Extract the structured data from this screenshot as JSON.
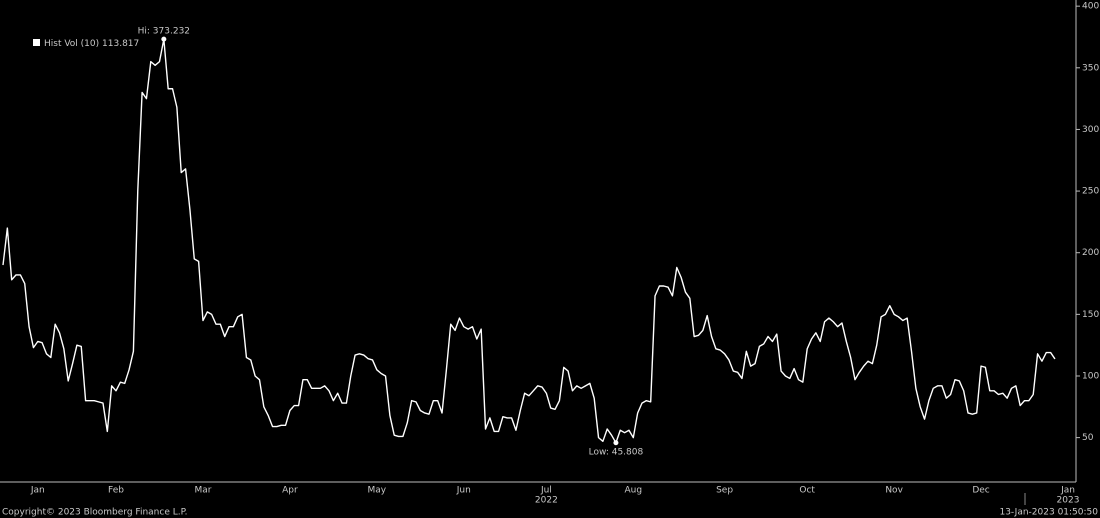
{
  "chart_data": {
    "type": "line",
    "legend_value_index": 242,
    "annotations": [
      "Hi: 373.232",
      "Low: 45.808"
    ],
    "footer_left": "Copyright© 2023 Bloomberg Finance L.P.",
    "footer_right": "13-Jan-2023 01:50:50",
    "categories": [
      null,
      null,
      null,
      null,
      null,
      null,
      null,
      null,
      "Jan",
      null,
      null,
      null,
      null,
      null,
      null,
      null,
      null,
      null,
      null,
      null,
      null,
      null,
      null,
      null,
      null,
      null,
      "Feb",
      null,
      null,
      null,
      null,
      null,
      null,
      null,
      null,
      null,
      null,
      null,
      null,
      null,
      null,
      null,
      null,
      null,
      null,
      null,
      "Mar",
      null,
      null,
      null,
      null,
      null,
      null,
      null,
      null,
      null,
      null,
      null,
      null,
      null,
      null,
      null,
      null,
      null,
      null,
      null,
      "Apr",
      null,
      null,
      null,
      null,
      null,
      null,
      null,
      null,
      null,
      null,
      null,
      null,
      null,
      null,
      null,
      null,
      null,
      null,
      null,
      "May",
      null,
      null,
      null,
      null,
      null,
      null,
      null,
      null,
      null,
      null,
      null,
      null,
      null,
      null,
      null,
      null,
      null,
      null,
      null,
      "Jun",
      null,
      null,
      null,
      null,
      null,
      null,
      null,
      null,
      null,
      null,
      null,
      null,
      null,
      null,
      null,
      null,
      null,
      null,
      "Jul",
      null,
      null,
      null,
      null,
      null,
      null,
      null,
      null,
      null,
      null,
      null,
      null,
      null,
      null,
      null,
      null,
      null,
      null,
      null,
      "Aug",
      null,
      null,
      null,
      null,
      null,
      null,
      null,
      null,
      null,
      null,
      null,
      null,
      null,
      null,
      null,
      null,
      null,
      null,
      null,
      null,
      "Sep",
      null,
      null,
      null,
      null,
      null,
      null,
      null,
      null,
      null,
      null,
      null,
      null,
      null,
      null,
      null,
      null,
      null,
      null,
      "Oct",
      null,
      null,
      null,
      null,
      null,
      null,
      null,
      null,
      null,
      null,
      null,
      null,
      null,
      null,
      null,
      null,
      null,
      null,
      null,
      "Nov",
      null,
      null,
      null,
      null,
      null,
      null,
      null,
      null,
      null,
      null,
      null,
      null,
      null,
      null,
      null,
      null,
      null,
      null,
      null,
      "Dec",
      null,
      null,
      null,
      null,
      null,
      null,
      null,
      null,
      null,
      null,
      null,
      null,
      null,
      null,
      null,
      null,
      null,
      null,
      null,
      "Jan"
    ],
    "year_categories": [
      null,
      null,
      null,
      null,
      null,
      null,
      null,
      null,
      null,
      null,
      null,
      null,
      null,
      null,
      null,
      null,
      null,
      null,
      null,
      null,
      null,
      null,
      null,
      null,
      null,
      null,
      null,
      null,
      null,
      null,
      null,
      null,
      null,
      null,
      null,
      null,
      null,
      null,
      null,
      null,
      null,
      null,
      null,
      null,
      null,
      null,
      null,
      null,
      null,
      null,
      null,
      null,
      null,
      null,
      null,
      null,
      null,
      null,
      null,
      null,
      null,
      null,
      null,
      null,
      null,
      null,
      null,
      null,
      null,
      null,
      null,
      null,
      null,
      null,
      null,
      null,
      null,
      null,
      null,
      null,
      null,
      null,
      null,
      null,
      null,
      null,
      null,
      null,
      null,
      null,
      null,
      null,
      null,
      null,
      null,
      null,
      null,
      null,
      null,
      null,
      null,
      null,
      null,
      null,
      null,
      null,
      null,
      null,
      null,
      null,
      null,
      null,
      null,
      null,
      null,
      null,
      null,
      null,
      null,
      null,
      null,
      null,
      null,
      null,
      null,
      "2022",
      null,
      null,
      null,
      null,
      null,
      null,
      null,
      null,
      null,
      null,
      null,
      null,
      null,
      null,
      null,
      null,
      null,
      null,
      null,
      null,
      null,
      null,
      null,
      null,
      null,
      null,
      null,
      null,
      null,
      null,
      null,
      null,
      null,
      null,
      null,
      null,
      null,
      null,
      null,
      null,
      null,
      null,
      null,
      null,
      null,
      null,
      null,
      null,
      null,
      null,
      null,
      null,
      null,
      null,
      null,
      null,
      null,
      null,
      null,
      null,
      null,
      null,
      null,
      null,
      null,
      null,
      null,
      null,
      null,
      null,
      null,
      null,
      null,
      null,
      null,
      null,
      null,
      null,
      null,
      null,
      null,
      null,
      null,
      null,
      null,
      null,
      null,
      null,
      null,
      null,
      null,
      null,
      null,
      null,
      null,
      null,
      null,
      null,
      null,
      null,
      null,
      null,
      null,
      null,
      null,
      null,
      null,
      null,
      null,
      null,
      null,
      null,
      null,
      null,
      null,
      null,
      null,
      null,
      null,
      "2023"
    ],
    "series": [
      {
        "name": "Hist Vol (10)",
        "color": "#ffffff",
        "values": [
          190,
          220,
          178,
          182,
          182,
          175,
          140,
          123,
          128,
          127,
          118,
          115,
          142,
          135,
          122,
          96,
          110,
          125,
          124,
          80,
          80,
          80,
          79,
          78,
          55,
          92,
          88,
          95,
          94,
          105,
          120,
          250,
          330,
          325,
          355,
          352,
          355,
          373.232,
          333,
          333,
          318,
          265,
          268,
          235,
          195,
          193,
          145,
          152,
          150,
          142,
          142,
          132,
          140,
          140,
          148,
          150,
          115,
          113,
          100,
          97,
          75,
          68,
          59,
          59,
          60,
          60,
          72,
          76,
          76,
          97,
          97,
          90,
          90,
          90,
          92,
          88,
          80,
          86,
          78,
          78,
          100,
          117,
          118,
          117,
          114,
          113,
          105,
          102,
          100,
          68,
          52,
          51,
          51,
          62,
          80,
          79,
          72,
          70,
          69,
          80,
          80,
          70,
          105,
          142,
          137,
          147,
          140,
          138,
          140,
          130,
          138,
          57,
          66,
          55,
          55,
          67,
          66,
          66,
          56,
          72,
          86,
          84,
          88,
          92,
          91,
          86,
          74,
          73,
          80,
          107,
          104,
          88,
          92,
          90,
          92,
          94,
          82,
          50,
          47,
          57,
          52,
          45.808,
          56,
          54,
          56,
          50,
          70,
          78,
          80,
          79,
          165,
          173,
          173,
          172,
          165,
          188,
          180,
          168,
          163,
          132,
          133,
          137,
          149,
          132,
          122,
          121,
          118,
          113,
          104,
          103,
          98,
          120,
          108,
          110,
          124,
          126,
          132,
          128,
          134,
          104,
          100,
          98,
          106,
          97,
          95,
          122,
          130,
          135,
          128,
          144,
          147,
          144,
          140,
          143,
          128,
          115,
          97,
          103,
          108,
          112,
          110,
          125,
          148,
          150,
          157,
          150,
          148,
          145,
          147,
          120,
          90,
          75,
          65,
          80,
          90,
          92,
          92,
          82,
          85,
          97,
          96,
          88,
          70,
          69,
          70,
          108,
          107,
          88,
          88,
          85,
          86,
          82,
          90,
          92,
          76,
          80,
          80,
          85,
          118,
          112,
          119,
          119,
          113.817,
          null,
          null,
          null
        ]
      }
    ],
    "ylim": [
      14,
      405
    ],
    "yticks": [
      50,
      100,
      150,
      200,
      250,
      300,
      350,
      400
    ],
    "grid": false
  }
}
